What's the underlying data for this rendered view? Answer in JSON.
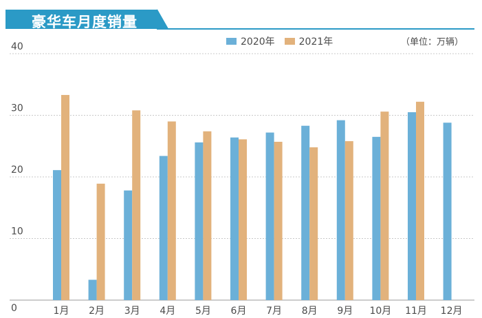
{
  "title": "豪华车月度销量",
  "unit": "（单位：万辆）",
  "colors": {
    "banner": "#2b9ac6",
    "series_2020": "#6bb0d8",
    "series_2021": "#e2b27c",
    "grid": "#c8c8c8"
  },
  "chart_data": {
    "type": "bar",
    "categories": [
      "1月",
      "2月",
      "3月",
      "4月",
      "5月",
      "6月",
      "7月",
      "8月",
      "9月",
      "10月",
      "11月",
      "12月"
    ],
    "series": [
      {
        "name": "2020年",
        "values": [
          21.1,
          3.3,
          17.8,
          23.4,
          25.6,
          26.4,
          27.2,
          28.3,
          29.2,
          26.5,
          30.5,
          28.8
        ]
      },
      {
        "name": "2021年",
        "values": [
          33.3,
          18.9,
          30.8,
          29.0,
          27.4,
          26.1,
          25.7,
          24.8,
          25.8,
          30.6,
          32.2,
          null
        ]
      }
    ],
    "ylim": [
      0,
      40
    ],
    "yticks": [
      "0",
      "10",
      "20",
      "30",
      "40"
    ],
    "grid": true,
    "legend_position": "top"
  }
}
